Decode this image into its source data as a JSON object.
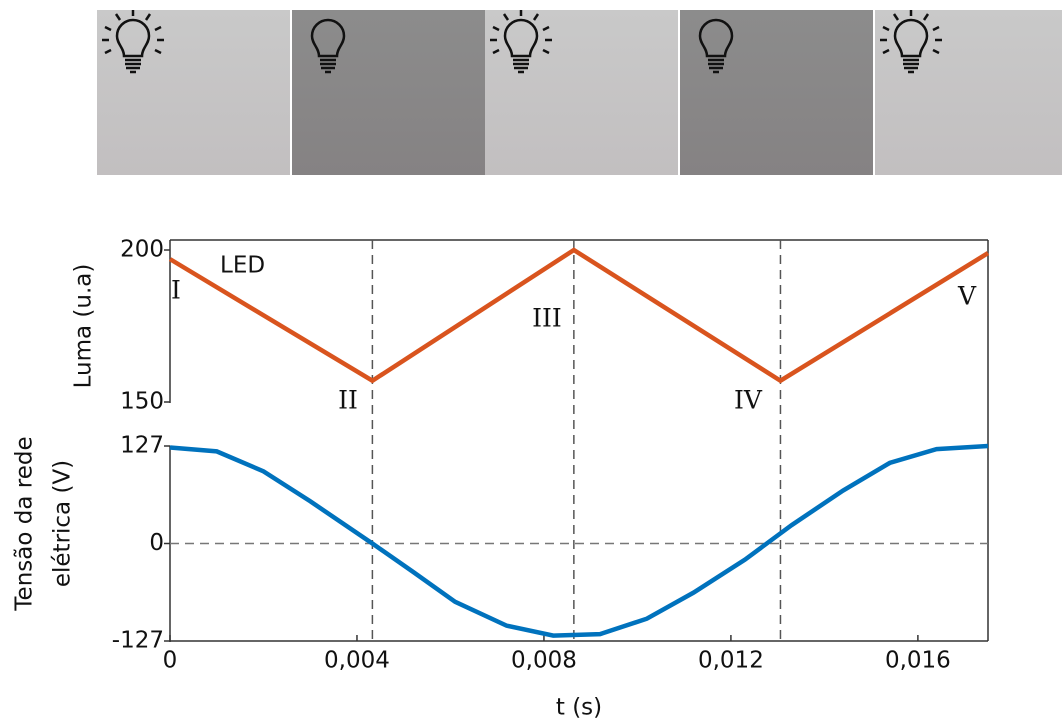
{
  "chart_data": [
    {
      "type": "line",
      "ylabel": "Luma (u.a)",
      "x": [
        0,
        0.00433,
        0.00864,
        0.01306,
        0.0175
      ],
      "series": [
        {
          "name": "LED",
          "color": "#d9541e",
          "values": [
            197,
            157,
            200,
            157,
            199
          ]
        }
      ],
      "xlim": [
        0,
        0.0175
      ],
      "ylim": [
        150,
        200
      ],
      "yticks": [
        150,
        200
      ],
      "vlines": [
        0.00433,
        0.00864,
        0.01306
      ],
      "annotations": [
        "I",
        "II",
        "III",
        "IV",
        "V"
      ]
    },
    {
      "type": "line",
      "ylabel": [
        "Tensão da rede",
        "elétrica (V)"
      ],
      "xlabel": "t (s)",
      "x": [
        0,
        0.001,
        0.002,
        0.003,
        0.00433,
        0.0052,
        0.0061,
        0.0072,
        0.0082,
        0.0092,
        0.0102,
        0.0112,
        0.0123,
        0.0133,
        0.0144,
        0.0154,
        0.0164,
        0.0175
      ],
      "series": [
        {
          "color": "#0072bd",
          "values": [
            125,
            120,
            94,
            55,
            0,
            -37,
            -76,
            -107,
            -120,
            -118,
            -98,
            -64,
            -21,
            24,
            69,
            105,
            123,
            127
          ]
        }
      ],
      "xlim": [
        0,
        0.0175
      ],
      "ylim": [
        -127,
        127
      ],
      "yticks": [
        -127,
        0,
        127
      ],
      "xticks": [
        0,
        {
          "value": 0.004,
          "label": "0,004"
        },
        {
          "value": 0.008,
          "label": "0,008"
        },
        {
          "value": 0.012,
          "label": "0,012"
        },
        {
          "value": 0.016,
          "label": "0,016"
        }
      ]
    }
  ]
}
